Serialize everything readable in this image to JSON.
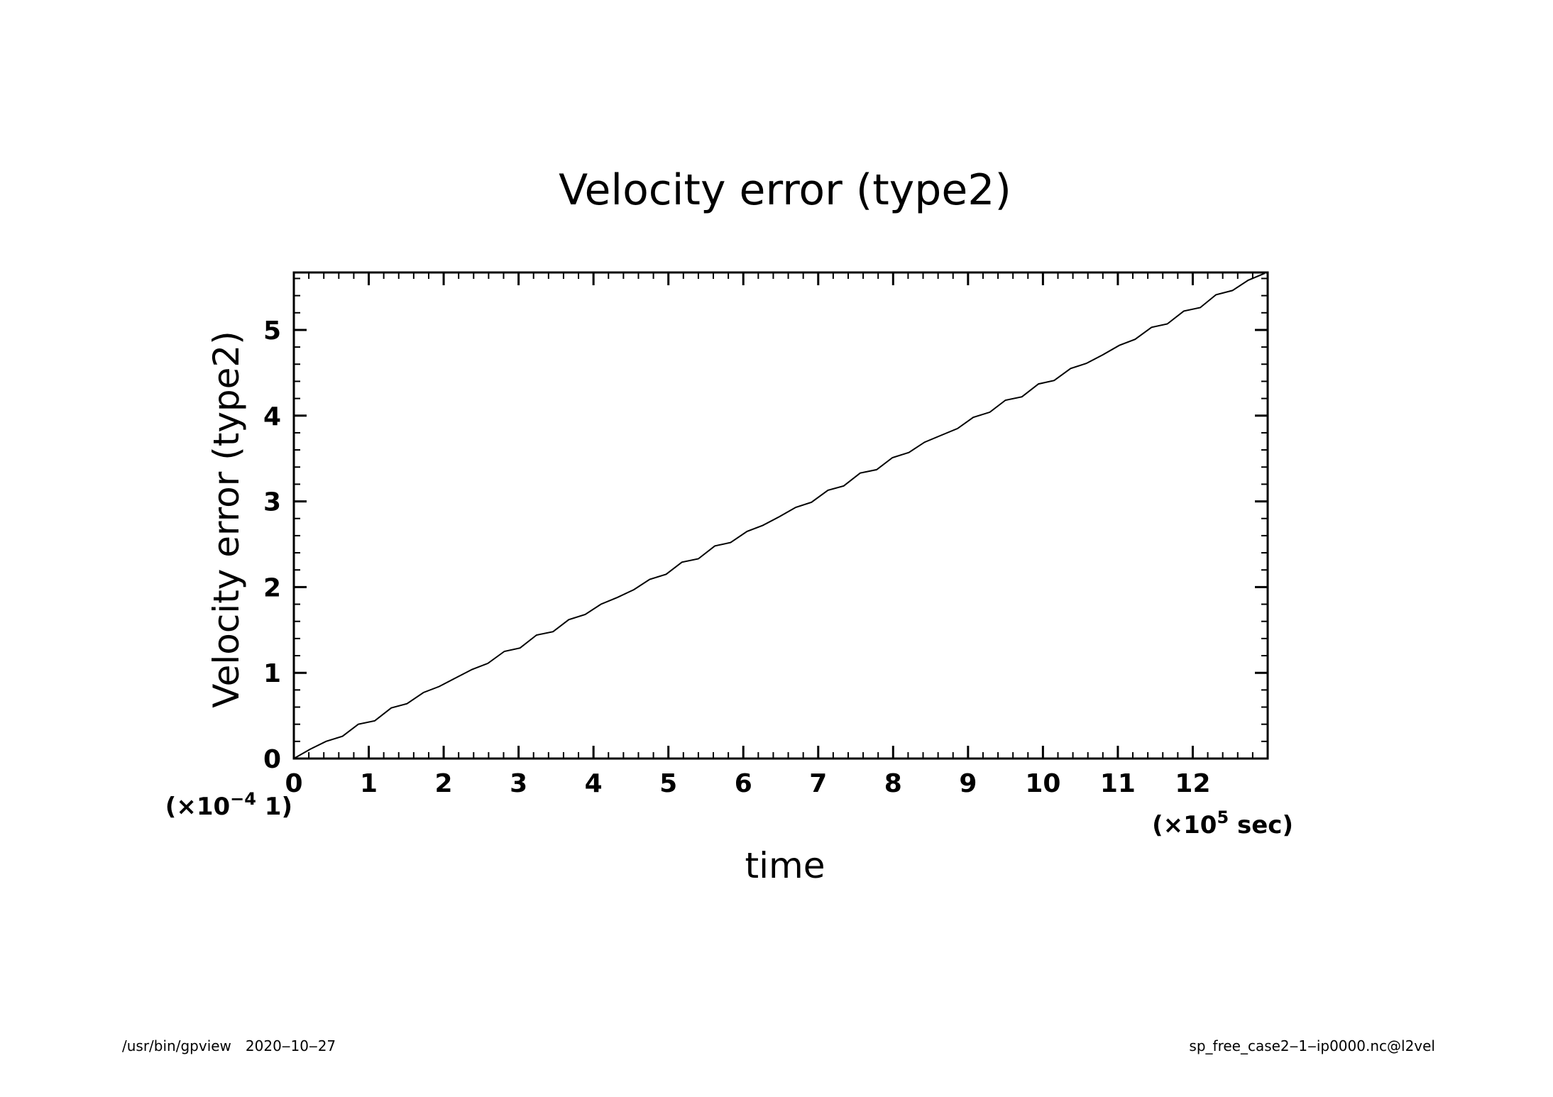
{
  "chart_data": {
    "type": "line",
    "title": "Velocity error (type2)",
    "xlabel": "time",
    "ylabel": "Velocity error (type2)",
    "x_scale_label": {
      "prefix": "(×10",
      "exp": "5",
      "suffix": " sec)"
    },
    "y_scale_label": {
      "prefix": "(×10",
      "exp": "−4",
      "suffix": " 1)"
    },
    "xlim": [
      0,
      13
    ],
    "ylim": [
      0,
      5.67
    ],
    "x_ticks": [
      "0",
      "1",
      "2",
      "3",
      "4",
      "5",
      "6",
      "7",
      "8",
      "9",
      "10",
      "11",
      "12"
    ],
    "y_ticks": [
      "0",
      "1",
      "2",
      "3",
      "4",
      "5"
    ],
    "grid": false,
    "series": [
      {
        "x": [
          0,
          0.22,
          0.43,
          0.65,
          0.86,
          1.08,
          1.3,
          1.51,
          1.73,
          1.94,
          2.16,
          2.38,
          2.59,
          2.81,
          3.02,
          3.24,
          3.46,
          3.67,
          3.89,
          4.1,
          4.32,
          4.54,
          4.75,
          4.97,
          5.18,
          5.4,
          5.62,
          5.83,
          6.05,
          6.26,
          6.48,
          6.7,
          6.91,
          7.13,
          7.34,
          7.56,
          7.78,
          7.99,
          8.21,
          8.42,
          8.64,
          8.86,
          9.07,
          9.29,
          9.5,
          9.72,
          9.94,
          10.15,
          10.37,
          10.58,
          10.8,
          11.02,
          11.23,
          11.45,
          11.66,
          11.88,
          12.1,
          12.31,
          12.53,
          12.74,
          12.96
        ],
        "y": [
          0,
          0.11,
          0.2,
          0.26,
          0.4,
          0.44,
          0.59,
          0.64,
          0.77,
          0.84,
          0.94,
          1.04,
          1.11,
          1.25,
          1.29,
          1.44,
          1.48,
          1.62,
          1.68,
          1.8,
          1.88,
          1.97,
          2.09,
          2.15,
          2.29,
          2.33,
          2.48,
          2.52,
          2.65,
          2.72,
          2.82,
          2.93,
          2.99,
          3.13,
          3.18,
          3.33,
          3.37,
          3.51,
          3.57,
          3.69,
          3.77,
          3.85,
          3.98,
          4.04,
          4.18,
          4.22,
          4.37,
          4.41,
          4.55,
          4.61,
          4.71,
          4.82,
          4.89,
          5.03,
          5.07,
          5.22,
          5.26,
          5.41,
          5.46,
          5.58,
          5.66
        ]
      }
    ],
    "colors": {
      "line": "#000000",
      "frame": "#000000",
      "background": "#ffffff"
    }
  },
  "footer": {
    "program": "/usr/bin/gpview",
    "date": "2020‒10‒27",
    "source": "sp_free_case2‒1‒ip0000.nc@l2vel"
  }
}
